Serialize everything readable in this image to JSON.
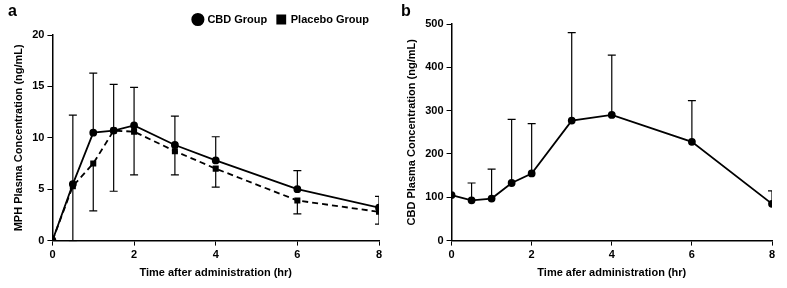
{
  "chart_data": [
    {
      "type": "line",
      "panel_label": "a",
      "x_label": "Time after administration (hr)",
      "y_label": "MPH Plasma Concentration (ng/mL)",
      "x": [
        0,
        0.5,
        1,
        1.5,
        2,
        3,
        4,
        6,
        8
      ],
      "xlim": [
        0,
        8
      ],
      "xticks": [
        0,
        2,
        4,
        6,
        8
      ],
      "ylim": [
        0,
        20
      ],
      "yticks": [
        0,
        5,
        10,
        15,
        20
      ],
      "grid": false,
      "legend": "upper right",
      "series": [
        {
          "name": "CBD Group",
          "color": "#000000",
          "marker": "circle",
          "line_style": "solid",
          "values": [
            0,
            5.5,
            10.5,
            10.7,
            11.2,
            9.3,
            7.8,
            5.0,
            3.2
          ],
          "error_upper": [
            0,
            6.7,
            5.8,
            4.5,
            3.7,
            2.8,
            2.3,
            1.8,
            1.1
          ]
        },
        {
          "name": "Placebo Group",
          "color": "#000000",
          "marker": "square",
          "line_style": "dashed",
          "values": [
            0,
            5.3,
            7.5,
            10.7,
            10.6,
            8.7,
            7.0,
            3.9,
            2.8
          ],
          "error_lower": [
            0,
            5.3,
            4.6,
            5.9,
            4.2,
            2.3,
            1.8,
            1.3,
            1.2
          ]
        }
      ]
    },
    {
      "type": "line",
      "panel_label": "b",
      "x_label": "Time afer administration (hr)",
      "y_label": "CBD Plasma Concentration (ng/mL)",
      "x": [
        0,
        0.5,
        1,
        1.5,
        2,
        3,
        4,
        6,
        8
      ],
      "xlim": [
        0,
        8
      ],
      "xticks": [
        0,
        2,
        4,
        6,
        8
      ],
      "ylim": [
        0,
        500
      ],
      "yticks": [
        0,
        100,
        200,
        300,
        400,
        500
      ],
      "grid": false,
      "series": [
        {
          "color": "#000000",
          "marker": "circle",
          "line_style": "solid",
          "values": [
            105,
            93,
            97,
            133,
            155,
            277,
            290,
            228,
            85
          ],
          "error_upper": [
            0,
            40,
            68,
            147,
            115,
            203,
            138,
            95,
            30
          ]
        }
      ]
    }
  ]
}
